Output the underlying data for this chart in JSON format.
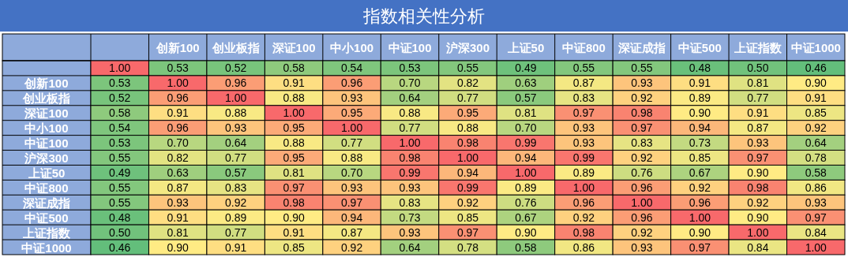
{
  "chart_data": {
    "type": "heatmap",
    "title": "指数相关性分析",
    "categories": [
      null,
      "创新100",
      "创业板指",
      "深证100",
      "中小100",
      "中证100",
      "沪深300",
      "上证50",
      "中证800",
      "深证成指",
      "中证500",
      "上证指数",
      "中证1000"
    ],
    "y_categories": [
      null,
      "创新100",
      "创业板指",
      "深证100",
      "中小100",
      "中证100",
      "沪深300",
      "上证50",
      "中证800",
      "深证成指",
      "中证500",
      "上证指数",
      "中证1000"
    ],
    "cells": [
      [
        1.0,
        0.53,
        0.52,
        0.58,
        0.54,
        0.53,
        0.55,
        0.49,
        0.55,
        0.55,
        0.48,
        0.5,
        0.46
      ],
      [
        0.53,
        1.0,
        0.96,
        0.91,
        0.96,
        0.7,
        0.82,
        0.63,
        0.87,
        0.93,
        0.91,
        0.81,
        0.9
      ],
      [
        0.52,
        0.96,
        1.0,
        0.88,
        0.93,
        0.64,
        0.77,
        0.57,
        0.83,
        0.92,
        0.89,
        0.77,
        0.91
      ],
      [
        0.58,
        0.91,
        0.88,
        1.0,
        0.95,
        0.88,
        0.95,
        0.81,
        0.97,
        0.98,
        0.9,
        0.91,
        0.85
      ],
      [
        0.54,
        0.96,
        0.93,
        0.95,
        1.0,
        0.77,
        0.88,
        0.7,
        0.93,
        0.97,
        0.94,
        0.87,
        0.92
      ],
      [
        0.53,
        0.7,
        0.64,
        0.88,
        0.77,
        1.0,
        0.98,
        0.99,
        0.93,
        0.83,
        0.73,
        0.93,
        0.64
      ],
      [
        0.55,
        0.82,
        0.77,
        0.95,
        0.88,
        0.98,
        1.0,
        0.94,
        0.99,
        0.92,
        0.85,
        0.97,
        0.78
      ],
      [
        0.49,
        0.63,
        0.57,
        0.81,
        0.7,
        0.99,
        0.94,
        1.0,
        0.89,
        0.76,
        0.67,
        0.9,
        0.58
      ],
      [
        0.55,
        0.87,
        0.83,
        0.97,
        0.93,
        0.93,
        0.99,
        0.89,
        1.0,
        0.96,
        0.92,
        0.98,
        0.86
      ],
      [
        0.55,
        0.93,
        0.92,
        0.98,
        0.97,
        0.83,
        0.92,
        0.76,
        0.96,
        1.0,
        0.96,
        0.92,
        0.93
      ],
      [
        0.48,
        0.91,
        0.89,
        0.9,
        0.94,
        0.73,
        0.85,
        0.67,
        0.92,
        0.96,
        1.0,
        0.9,
        0.97
      ],
      [
        0.5,
        0.81,
        0.77,
        0.91,
        0.87,
        0.93,
        0.97,
        0.9,
        0.98,
        0.92,
        0.9,
        1.0,
        0.84
      ],
      [
        0.46,
        0.9,
        0.91,
        0.85,
        0.92,
        0.64,
        0.78,
        0.58,
        0.86,
        0.93,
        0.97,
        0.84,
        1.0
      ]
    ],
    "cell_labels": [
      [
        "1.00",
        "0.53",
        "0.52",
        "0.58",
        "0.54",
        "0.53",
        "0.55",
        "0.49",
        "0.55",
        "0.55",
        "0.48",
        "0.50",
        "0.46"
      ],
      [
        "0.53",
        "1.00",
        "0.96",
        "0.91",
        "0.96",
        "0.70",
        "0.82",
        "0.63",
        "0.87",
        "0.93",
        "0.91",
        "0.81",
        "0.90"
      ],
      [
        "0.52",
        "0.96",
        "1.00",
        "0.88",
        "0.93",
        "0.64",
        "0.77",
        "0.57",
        "0.83",
        "0.92",
        "0.89",
        "0.77",
        "0.91"
      ],
      [
        "0.58",
        "0.91",
        "0.88",
        "1.00",
        "0.95",
        "0.88",
        "0.95",
        "0.81",
        "0.97",
        "0.98",
        "0.90",
        "0.91",
        "0.85"
      ],
      [
        "0.54",
        "0.96",
        "0.93",
        "0.95",
        "1.00",
        "0.77",
        "0.88",
        "0.70",
        "0.93",
        "0.97",
        "0.94",
        "0.87",
        "0.92"
      ],
      [
        "0.53",
        "0.70",
        "0.64",
        "0.88",
        "0.77",
        "1.00",
        "0.98",
        "0.99",
        "0.93",
        "0.83",
        "0.73",
        "0.93",
        "0.64"
      ],
      [
        "0.55",
        "0.82",
        "0.77",
        "0.95",
        "0.88",
        "0.98",
        "1.00",
        "0.94",
        "0.99",
        "0.92",
        "0.85",
        "0.97",
        "0.78"
      ],
      [
        "0.49",
        "0.63",
        "0.57",
        "0.81",
        "0.70",
        "0.99",
        "0.94",
        "1.00",
        "0.89",
        "0.76",
        "0.67",
        "0.90",
        "0.58"
      ],
      [
        "0.55",
        "0.87",
        "0.83",
        "0.97",
        "0.93",
        "0.93",
        "0.99",
        "0.89",
        "1.00",
        "0.96",
        "0.92",
        "0.98",
        "0.86"
      ],
      [
        "0.55",
        "0.93",
        "0.92",
        "0.98",
        "0.97",
        "0.83",
        "0.92",
        "0.76",
        "0.96",
        "1.00",
        "0.96",
        "0.92",
        "0.93"
      ],
      [
        "0.48",
        "0.91",
        "0.89",
        "0.90",
        "0.94",
        "0.73",
        "0.85",
        "0.67",
        "0.92",
        "0.96",
        "1.00",
        "0.90",
        "0.97"
      ],
      [
        "0.50",
        "0.81",
        "0.77",
        "0.91",
        "0.87",
        "0.93",
        "0.97",
        "0.90",
        "0.98",
        "0.92",
        "0.90",
        "1.00",
        "0.84"
      ],
      [
        "0.46",
        "0.90",
        "0.91",
        "0.85",
        "0.92",
        "0.64",
        "0.78",
        "0.58",
        "0.86",
        "0.93",
        "0.97",
        "0.84",
        "1.00"
      ]
    ]
  }
}
